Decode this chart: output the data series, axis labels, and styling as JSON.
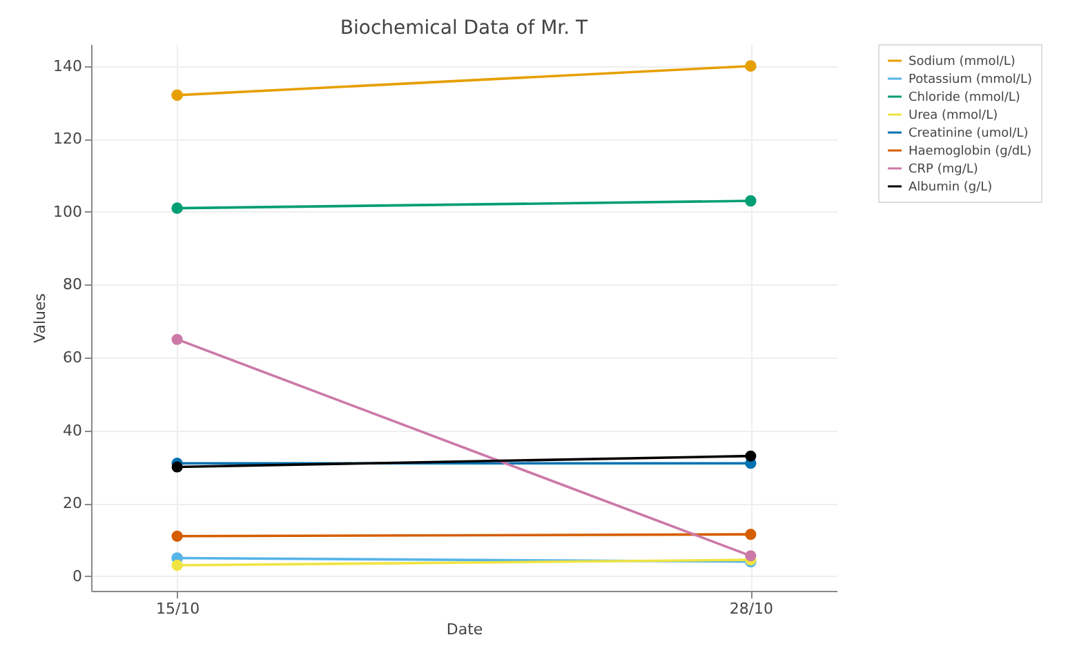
{
  "chart_data": {
    "type": "line",
    "title": "Biochemical Data of Mr. T",
    "xlabel": "Date",
    "ylabel": "Values",
    "categories": [
      "15/10",
      "28/10"
    ],
    "ylim": [
      -4,
      146
    ],
    "yticks": [
      0,
      20,
      40,
      60,
      80,
      100,
      120,
      140
    ],
    "grid": true,
    "legend": "top right",
    "marker": "circle",
    "line_style": "solid",
    "series": [
      {
        "name": "Sodium (mmol/L)",
        "color": "#e69f00",
        "values": [
          132,
          140
        ]
      },
      {
        "name": "Potassium (mmol/L)",
        "color": "#56b4e9",
        "values": [
          5,
          4
        ]
      },
      {
        "name": "Chloride (mmol/L)",
        "color": "#009e73",
        "values": [
          101,
          103
        ]
      },
      {
        "name": "Urea (mmol/L)",
        "color": "#f0e442",
        "values": [
          3,
          4.5
        ]
      },
      {
        "name": "Creatinine (umol/L)",
        "color": "#0072b2",
        "values": [
          31,
          31
        ]
      },
      {
        "name": "Haemoglobin (g/dL)",
        "color": "#d55e00",
        "values": [
          11,
          11.5
        ]
      },
      {
        "name": "CRP (mg/L)",
        "color": "#cc79a7",
        "values": [
          65,
          5.6
        ]
      },
      {
        "name": "Albumin (g/L)",
        "color": "#000000",
        "values": [
          30,
          33
        ]
      }
    ]
  }
}
